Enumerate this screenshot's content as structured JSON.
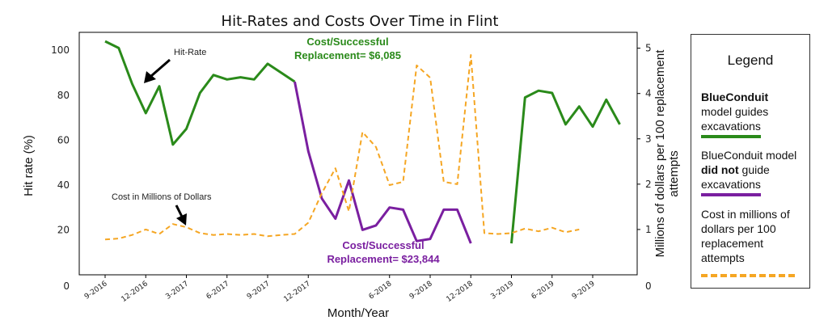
{
  "chart_data": {
    "type": "line",
    "title": "Hit-Rates and Costs Over Time in Flint",
    "xlabel": "Month/Year",
    "ylabel_left": "Hit rate (%)",
    "ylabel_right_line1": "Millions of dollars per 100 replacement",
    "ylabel_right_line2": "attempts",
    "ylim_left": [
      0,
      108
    ],
    "ylim_right": [
      0,
      5.35
    ],
    "yticks_left": [
      "0",
      "20",
      "40",
      "60",
      "80",
      "100"
    ],
    "yticks_right": [
      "0",
      "1",
      "2",
      "3",
      "4",
      "5"
    ],
    "x_tick_labels": [
      "9-2016",
      "12-2016",
      "3-2017",
      "6-2017",
      "9-2017",
      "12-2017",
      "6-2018",
      "9-2018",
      "12-2018",
      "3-2019",
      "6-2019",
      "9-2019"
    ],
    "x_tick_month_index": [
      0,
      3,
      6,
      9,
      12,
      15,
      21,
      24,
      27,
      30,
      33,
      36
    ],
    "grid": false,
    "series": [
      {
        "name": "BlueConduit model guides excavations",
        "axis": "left",
        "color": "#2a8a1a",
        "style": "solid",
        "segments": [
          [
            [
              0,
              104
            ],
            [
              1,
              101
            ],
            [
              2,
              85
            ],
            [
              3,
              72
            ],
            [
              4,
              84
            ],
            [
              5,
              58
            ],
            [
              6,
              65
            ],
            [
              7,
              81
            ],
            [
              8,
              89
            ],
            [
              9,
              87
            ],
            [
              10,
              88
            ],
            [
              11,
              87
            ],
            [
              12,
              94
            ],
            [
              13,
              90
            ],
            [
              14,
              86
            ]
          ],
          [
            [
              30,
              14
            ],
            [
              31,
              79
            ],
            [
              32,
              82
            ],
            [
              33,
              81
            ],
            [
              34,
              67
            ],
            [
              35,
              75
            ],
            [
              36,
              66
            ],
            [
              37,
              78
            ],
            [
              38,
              67
            ]
          ]
        ]
      },
      {
        "name": "BlueConduit model did not guide excavations",
        "axis": "left",
        "color": "#7a1fa0",
        "style": "solid",
        "segments": [
          [
            [
              14,
              86
            ],
            [
              15,
              55
            ],
            [
              16,
              34
            ],
            [
              17,
              25
            ],
            [
              18,
              42
            ],
            [
              19,
              20
            ],
            [
              20,
              22
            ],
            [
              21,
              30
            ],
            [
              22,
              29
            ],
            [
              23,
              15
            ],
            [
              24,
              16
            ],
            [
              25,
              29
            ],
            [
              26,
              29
            ],
            [
              27,
              14
            ]
          ]
        ]
      },
      {
        "name": "Cost in millions of dollars per 100 replacement attempts",
        "axis": "right",
        "color": "#f5a623",
        "style": "dashed",
        "points": [
          [
            0,
            0.78
          ],
          [
            1,
            0.8
          ],
          [
            2,
            0.88
          ],
          [
            3,
            1.0
          ],
          [
            4,
            0.9
          ],
          [
            5,
            1.12
          ],
          [
            6,
            1.05
          ],
          [
            7,
            0.92
          ],
          [
            8,
            0.88
          ],
          [
            9,
            0.9
          ],
          [
            10,
            0.88
          ],
          [
            11,
            0.9
          ],
          [
            12,
            0.85
          ],
          [
            13,
            0.88
          ],
          [
            14,
            0.9
          ],
          [
            15,
            1.15
          ],
          [
            16,
            1.8
          ],
          [
            17,
            2.35
          ],
          [
            18,
            1.4
          ],
          [
            19,
            3.15
          ],
          [
            20,
            2.82
          ],
          [
            21,
            1.98
          ],
          [
            22,
            2.05
          ],
          [
            23,
            4.62
          ],
          [
            24,
            4.35
          ],
          [
            25,
            2.05
          ],
          [
            26,
            2.0
          ],
          [
            27,
            4.85
          ],
          [
            28,
            0.92
          ],
          [
            29,
            0.9
          ],
          [
            30,
            0.92
          ],
          [
            31,
            1.02
          ],
          [
            32,
            0.96
          ],
          [
            33,
            1.04
          ],
          [
            34,
            0.94
          ],
          [
            35,
            1.0
          ]
        ]
      }
    ],
    "annotations": {
      "hit_rate": "Hit-Rate",
      "cost": "Cost in Millions of Dollars",
      "green_line1": "Cost/Successful",
      "green_line2": "Replacement= $6,085",
      "purple_line1": "Cost/Successful",
      "purple_line2": "Replacement= $23,844"
    },
    "legend": {
      "title": "Legend",
      "green_bold": "BlueConduit",
      "green_rest": "model guides excavations",
      "purple_pre": "BlueConduit model ",
      "purple_bold": "did not",
      "purple_post": " guide excavations",
      "cost": "Cost in millions of dollars per 100 replacement attempts"
    }
  }
}
